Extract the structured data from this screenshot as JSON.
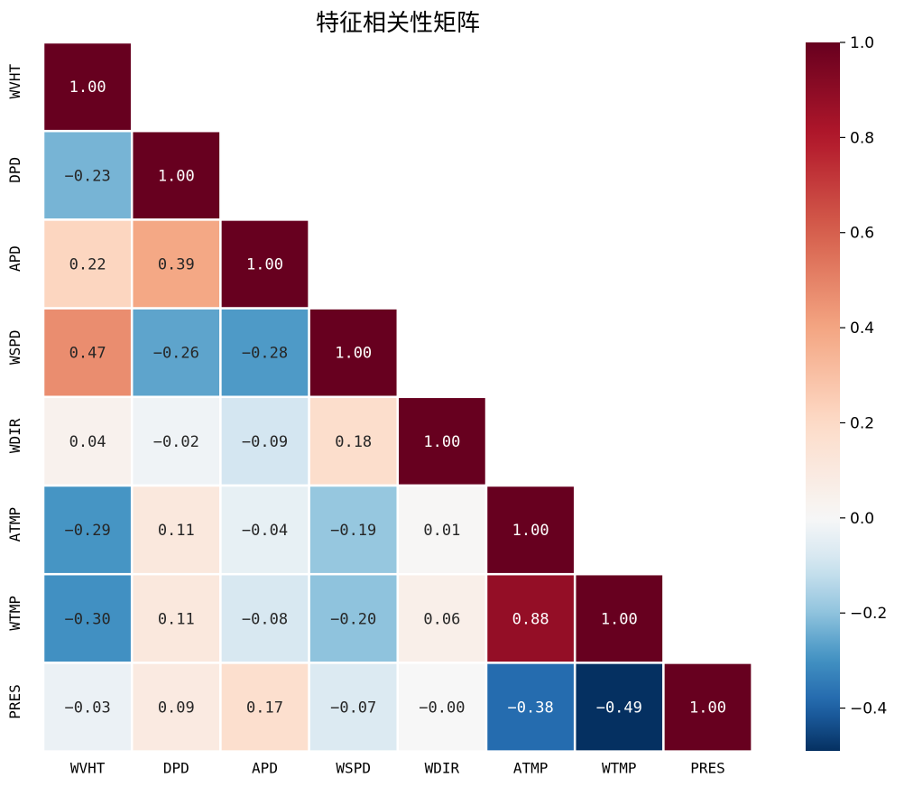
{
  "chart_data": {
    "type": "heatmap",
    "title": "特征相关性矩阵",
    "variables": [
      "WVHT",
      "DPD",
      "APD",
      "WSPD",
      "WDIR",
      "ATMP",
      "WTMP",
      "PRES"
    ],
    "values": [
      [
        1.0
      ],
      [
        -0.23,
        1.0
      ],
      [
        0.22,
        0.39,
        1.0
      ],
      [
        0.47,
        -0.26,
        -0.28,
        1.0
      ],
      [
        0.04,
        -0.02,
        -0.09,
        0.18,
        1.0
      ],
      [
        -0.29,
        0.11,
        -0.04,
        -0.19,
        0.01,
        1.0
      ],
      [
        -0.3,
        0.11,
        -0.08,
        -0.2,
        0.06,
        0.88,
        1.0
      ],
      [
        -0.03,
        0.09,
        0.17,
        -0.07,
        -0.0,
        -0.38,
        -0.49,
        1.0
      ]
    ],
    "value_labels": [
      [
        "1.00"
      ],
      [
        "−0.23",
        "1.00"
      ],
      [
        "0.22",
        "0.39",
        "1.00"
      ],
      [
        "0.47",
        "−0.26",
        "−0.28",
        "1.00"
      ],
      [
        "0.04",
        "−0.02",
        "−0.09",
        "0.18",
        "1.00"
      ],
      [
        "−0.29",
        "0.11",
        "−0.04",
        "−0.19",
        "0.01",
        "1.00"
      ],
      [
        "−0.30",
        "0.11",
        "−0.08",
        "−0.20",
        "0.06",
        "0.88",
        "1.00"
      ],
      [
        "−0.03",
        "0.09",
        "0.17",
        "−0.07",
        "−0.00",
        "−0.38",
        "−0.49",
        "1.00"
      ]
    ],
    "mask": "upper-triangle",
    "colormap": "RdBu_r",
    "center": 0,
    "colorbar": {
      "range": [
        -0.49,
        1.0
      ],
      "ticks": [
        1.0,
        0.8,
        0.6,
        0.4,
        0.2,
        0.0,
        -0.2,
        -0.4
      ],
      "tick_labels": [
        "1.0",
        "0.8",
        "0.6",
        "0.4",
        "0.2",
        "0.0",
        "−0.2",
        "−0.4"
      ],
      "placement": "right"
    },
    "grid": false
  }
}
